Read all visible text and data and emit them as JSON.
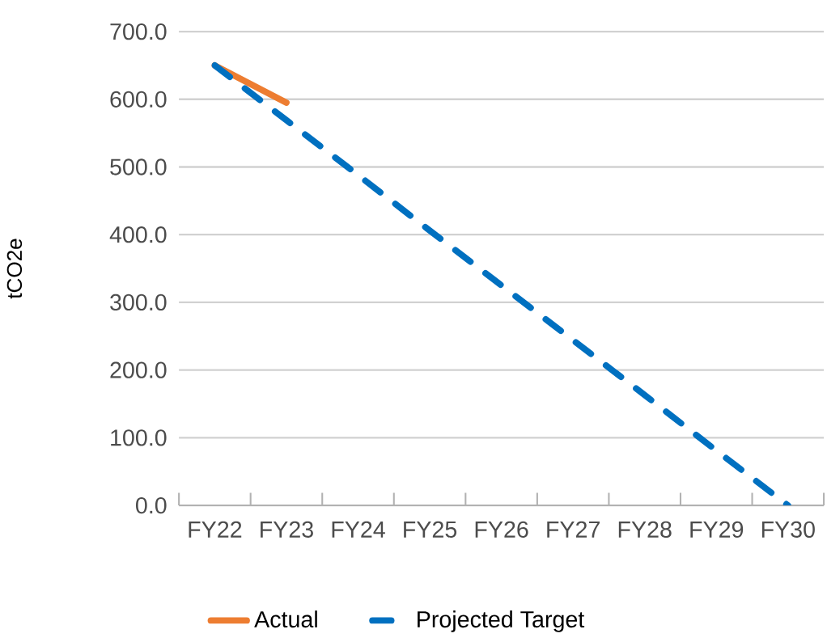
{
  "chart_data": {
    "type": "line",
    "ylabel": "tCO2e",
    "categories": [
      "FY22",
      "FY23",
      "FY24",
      "FY25",
      "FY26",
      "FY27",
      "FY28",
      "FY29",
      "FY30"
    ],
    "series": [
      {
        "name": "Actual",
        "color": "#ed7d31",
        "line_style": "solid",
        "values": [
          650,
          595,
          null,
          null,
          null,
          null,
          null,
          null,
          null
        ]
      },
      {
        "name": "Projected Target",
        "color": "#0070c0",
        "line_style": "dashed",
        "values": [
          650,
          569,
          488,
          406,
          325,
          244,
          163,
          81,
          0
        ]
      }
    ],
    "ylim": [
      0,
      700
    ],
    "yticks": [
      {
        "value": 0,
        "label": "0.0"
      },
      {
        "value": 100,
        "label": "100.0"
      },
      {
        "value": 200,
        "label": "200.0"
      },
      {
        "value": 300,
        "label": "300.0"
      },
      {
        "value": 400,
        "label": "400.0"
      },
      {
        "value": 500,
        "label": "500.0"
      },
      {
        "value": 600,
        "label": "600.0"
      },
      {
        "value": 700,
        "label": "700.0"
      }
    ],
    "grid": "y",
    "legend": "bottom",
    "marker": "none"
  }
}
